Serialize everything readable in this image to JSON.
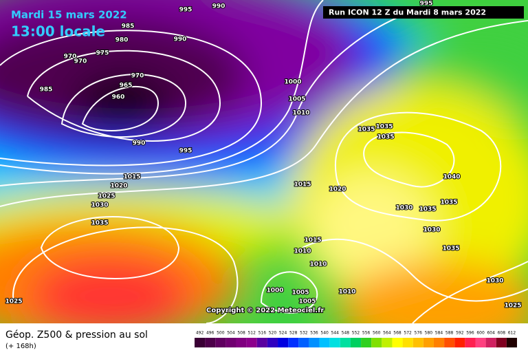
{
  "header": {
    "date": "Mardi 15 mars 2022",
    "time": "13:00 locale",
    "run": "Run ICON 12 Z du Mardi 8 mars 2022"
  },
  "copyright": "Copyright © 2022 Meteociel.fr",
  "footer": {
    "title": "Géop. Z500 & pression au sol",
    "subtitle": "(+ 168h)"
  },
  "isobar_labels": [
    "995",
    "990",
    "985",
    "980",
    "990",
    "975",
    "970",
    "970",
    "970",
    "965",
    "960",
    "985",
    "990",
    "995",
    "1000",
    "1005",
    "1010",
    "1015",
    "1020",
    "1025",
    "1030",
    "1035",
    "1035",
    "1035",
    "1035",
    "1040",
    "1035",
    "1030",
    "1035",
    "1030",
    "1035",
    "1030",
    "1025",
    "1025",
    "1015",
    "1020",
    "1015",
    "1010",
    "1010",
    "1000",
    "1005",
    "1005",
    "1010",
    "995"
  ],
  "legend": {
    "values": [
      492,
      496,
      500,
      504,
      508,
      512,
      516,
      520,
      524,
      528,
      532,
      536,
      540,
      544,
      548,
      552,
      556,
      560,
      564,
      568,
      572,
      576,
      580,
      584,
      588,
      592,
      596,
      600,
      604,
      608,
      612
    ],
    "colors": [
      "#3a0035",
      "#4d004a",
      "#600060",
      "#700070",
      "#800080",
      "#8c008c",
      "#5a00a0",
      "#3000c0",
      "#0000e0",
      "#0030ff",
      "#0060ff",
      "#0090ff",
      "#00c0ff",
      "#00e0e0",
      "#00e0a0",
      "#00d060",
      "#30d020",
      "#80e000",
      "#c0f000",
      "#ffff00",
      "#ffe000",
      "#ffc000",
      "#ffa000",
      "#ff8000",
      "#ff5000",
      "#ff2000",
      "#ff2050",
      "#ff4080",
      "#d02060",
      "#800020",
      "#200000"
    ]
  }
}
